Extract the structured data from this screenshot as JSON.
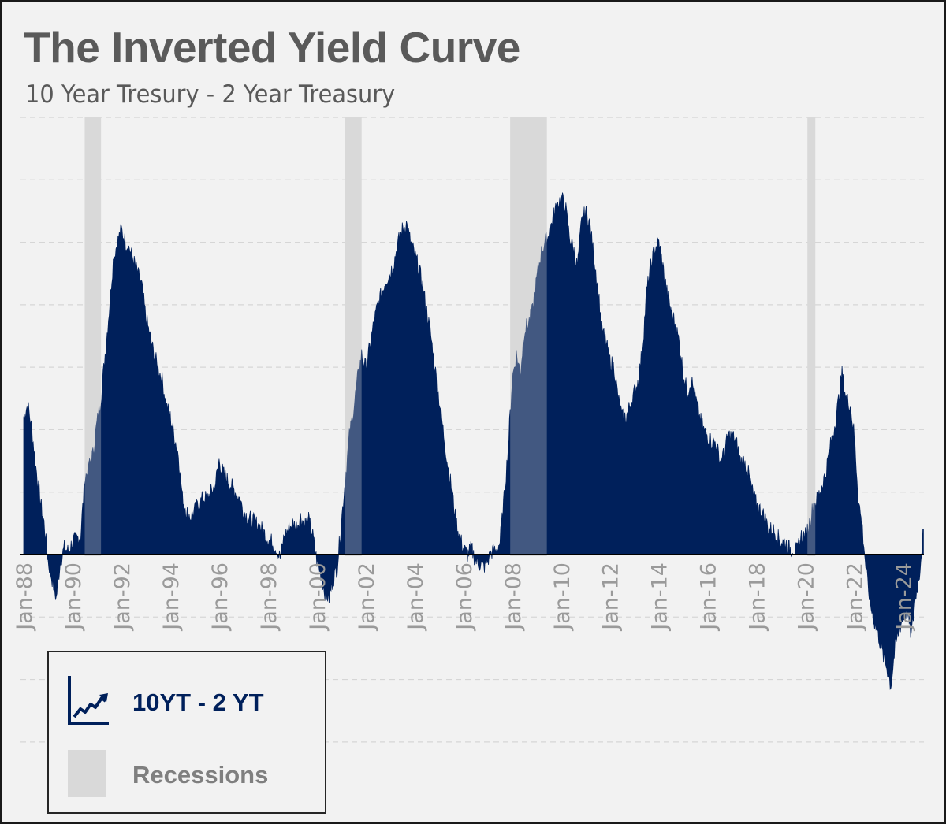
{
  "title": "The Inverted Yield Curve",
  "subtitle": "10 Year Tresury - 2 Year Treasury",
  "colors": {
    "area": "#00205b",
    "recession": "#d9d9d9",
    "grid": "#d6d6d6",
    "zero_line": "#000000",
    "tick_label": "#9a9a9a",
    "background": "#f2f2f2"
  },
  "legend": {
    "series_label": "10YT - 2 YT",
    "series_icon": "line-chart-icon",
    "recession_label": "Recessions"
  },
  "chart_data": {
    "type": "area",
    "x_axis": {
      "range": [
        "1988-01",
        "2024-12"
      ],
      "tick_labels": [
        "Jan-88",
        "Jan-90",
        "Jan-92",
        "Jan-94",
        "Jan-96",
        "Jan-98",
        "Jan-00",
        "Jan-02",
        "Jan-04",
        "Jan-06",
        "Jan-08",
        "Jan-10",
        "Jan-12",
        "Jan-14",
        "Jan-16",
        "Jan-18",
        "Jan-20",
        "Jan-22",
        "Jan-24"
      ],
      "tick_dates": [
        "1988-01",
        "1990-01",
        "1992-01",
        "1994-01",
        "1996-01",
        "1998-01",
        "2000-01",
        "2002-01",
        "2004-01",
        "2006-01",
        "2008-01",
        "2010-01",
        "2012-01",
        "2014-01",
        "2016-01",
        "2018-01",
        "2020-01",
        "2022-01",
        "2024-01"
      ],
      "label_rotation": "vertical"
    },
    "y_axis": {
      "range": [
        -3,
        7
      ],
      "grid_step": 1,
      "tick_labels_shown": false
    },
    "grid": "horizontal-dashed",
    "recessions": [
      {
        "start": "1990-07",
        "end": "1991-03"
      },
      {
        "start": "2001-03",
        "end": "2001-11"
      },
      {
        "start": "2007-12",
        "end": "2009-06"
      },
      {
        "start": "2020-02",
        "end": "2020-04"
      }
    ],
    "series": [
      {
        "name": "10YT - 2 YT",
        "points": [
          [
            "1988-01",
            2.2
          ],
          [
            "1988-03",
            2.4
          ],
          [
            "1988-05",
            2.0
          ],
          [
            "1988-07",
            1.4
          ],
          [
            "1988-09",
            0.9
          ],
          [
            "1988-11",
            0.5
          ],
          [
            "1989-01",
            -0.1
          ],
          [
            "1989-03",
            -0.4
          ],
          [
            "1989-05",
            -0.7
          ],
          [
            "1989-07",
            -0.1
          ],
          [
            "1989-09",
            0.1
          ],
          [
            "1989-11",
            0.05
          ],
          [
            "1990-01",
            0.2
          ],
          [
            "1990-03",
            0.25
          ],
          [
            "1990-05",
            0.3
          ],
          [
            "1990-07",
            1.2
          ],
          [
            "1990-09",
            1.4
          ],
          [
            "1990-11",
            1.6
          ],
          [
            "1991-01",
            2.1
          ],
          [
            "1991-03",
            2.5
          ],
          [
            "1991-05",
            3.2
          ],
          [
            "1991-07",
            3.9
          ],
          [
            "1991-09",
            4.7
          ],
          [
            "1991-11",
            5.0
          ],
          [
            "1992-01",
            5.2
          ],
          [
            "1992-03",
            5.0
          ],
          [
            "1992-05",
            4.9
          ],
          [
            "1992-07",
            4.7
          ],
          [
            "1992-09",
            4.5
          ],
          [
            "1992-11",
            4.3
          ],
          [
            "1993-01",
            3.8
          ],
          [
            "1993-03",
            3.5
          ],
          [
            "1993-05",
            3.2
          ],
          [
            "1993-07",
            3.0
          ],
          [
            "1993-09",
            2.8
          ],
          [
            "1993-11",
            2.4
          ],
          [
            "1994-01",
            2.2
          ],
          [
            "1994-03",
            1.9
          ],
          [
            "1994-05",
            1.6
          ],
          [
            "1994-07",
            0.9
          ],
          [
            "1994-09",
            0.7
          ],
          [
            "1994-11",
            0.6
          ],
          [
            "1995-01",
            0.7
          ],
          [
            "1995-03",
            0.8
          ],
          [
            "1995-05",
            0.9
          ],
          [
            "1995-07",
            0.9
          ],
          [
            "1995-09",
            1.0
          ],
          [
            "1995-11",
            1.1
          ],
          [
            "1996-01",
            1.5
          ],
          [
            "1996-03",
            1.3
          ],
          [
            "1996-05",
            1.2
          ],
          [
            "1996-07",
            1.1
          ],
          [
            "1996-09",
            1.0
          ],
          [
            "1996-11",
            0.9
          ],
          [
            "1997-01",
            0.7
          ],
          [
            "1997-03",
            0.6
          ],
          [
            "1997-05",
            0.55
          ],
          [
            "1997-07",
            0.5
          ],
          [
            "1997-09",
            0.45
          ],
          [
            "1997-11",
            0.35
          ],
          [
            "1998-01",
            0.25
          ],
          [
            "1998-03",
            0.2
          ],
          [
            "1998-05",
            0.1
          ],
          [
            "1998-07",
            -0.05
          ],
          [
            "1998-09",
            0.3
          ],
          [
            "1998-11",
            0.4
          ],
          [
            "1999-01",
            0.5
          ],
          [
            "1999-03",
            0.45
          ],
          [
            "1999-05",
            0.6
          ],
          [
            "1999-07",
            0.5
          ],
          [
            "1999-09",
            0.55
          ],
          [
            "1999-11",
            0.3
          ],
          [
            "2000-01",
            -0.1
          ],
          [
            "2000-03",
            -0.3
          ],
          [
            "2000-05",
            -0.6
          ],
          [
            "2000-07",
            -0.7
          ],
          [
            "2000-09",
            -0.4
          ],
          [
            "2000-11",
            -0.2
          ],
          [
            "2001-01",
            0.5
          ],
          [
            "2001-03",
            1.2
          ],
          [
            "2001-05",
            1.9
          ],
          [
            "2001-07",
            2.3
          ],
          [
            "2001-09",
            2.8
          ],
          [
            "2001-11",
            3.2
          ],
          [
            "2002-01",
            3.0
          ],
          [
            "2002-03",
            3.3
          ],
          [
            "2002-05",
            3.7
          ],
          [
            "2002-07",
            4.0
          ],
          [
            "2002-09",
            4.2
          ],
          [
            "2002-11",
            4.4
          ],
          [
            "2003-01",
            4.5
          ],
          [
            "2003-03",
            4.7
          ],
          [
            "2003-05",
            5.0
          ],
          [
            "2003-07",
            5.2
          ],
          [
            "2003-09",
            5.3
          ],
          [
            "2003-11",
            5.0
          ],
          [
            "2004-01",
            4.8
          ],
          [
            "2004-03",
            4.6
          ],
          [
            "2004-05",
            4.3
          ],
          [
            "2004-07",
            3.9
          ],
          [
            "2004-09",
            3.5
          ],
          [
            "2004-11",
            3.0
          ],
          [
            "2005-01",
            2.5
          ],
          [
            "2005-03",
            2.0
          ],
          [
            "2005-05",
            1.5
          ],
          [
            "2005-07",
            1.1
          ],
          [
            "2005-09",
            0.6
          ],
          [
            "2005-11",
            0.3
          ],
          [
            "2006-01",
            0.1
          ],
          [
            "2006-03",
            0.0
          ],
          [
            "2006-05",
            0.1
          ],
          [
            "2006-07",
            -0.1
          ],
          [
            "2006-09",
            -0.15
          ],
          [
            "2006-11",
            -0.2
          ],
          [
            "2007-01",
            -0.1
          ],
          [
            "2007-03",
            0.05
          ],
          [
            "2007-05",
            0.05
          ],
          [
            "2007-07",
            0.2
          ],
          [
            "2007-09",
            0.9
          ],
          [
            "2007-11",
            1.7
          ],
          [
            "2008-01",
            2.8
          ],
          [
            "2008-03",
            3.2
          ],
          [
            "2008-05",
            2.9
          ],
          [
            "2008-07",
            3.6
          ],
          [
            "2008-09",
            3.7
          ],
          [
            "2008-11",
            3.9
          ],
          [
            "2009-01",
            4.4
          ],
          [
            "2009-03",
            4.8
          ],
          [
            "2009-05",
            5.0
          ],
          [
            "2009-07",
            5.1
          ],
          [
            "2009-09",
            5.4
          ],
          [
            "2009-11",
            5.6
          ],
          [
            "2010-01",
            5.7
          ],
          [
            "2010-03",
            5.6
          ],
          [
            "2010-05",
            5.1
          ],
          [
            "2010-07",
            4.9
          ],
          [
            "2010-09",
            4.6
          ],
          [
            "2010-11",
            5.3
          ],
          [
            "2011-01",
            5.5
          ],
          [
            "2011-03",
            5.3
          ],
          [
            "2011-05",
            4.8
          ],
          [
            "2011-07",
            4.3
          ],
          [
            "2011-09",
            3.6
          ],
          [
            "2011-11",
            3.4
          ],
          [
            "2012-01",
            3.1
          ],
          [
            "2012-03",
            3.0
          ],
          [
            "2012-05",
            2.5
          ],
          [
            "2012-07",
            2.2
          ],
          [
            "2012-09",
            2.2
          ],
          [
            "2012-11",
            2.4
          ],
          [
            "2013-01",
            2.6
          ],
          [
            "2013-03",
            2.8
          ],
          [
            "2013-05",
            3.3
          ],
          [
            "2013-07",
            4.2
          ],
          [
            "2013-09",
            4.6
          ],
          [
            "2013-11",
            4.9
          ],
          [
            "2014-01",
            5.0
          ],
          [
            "2014-03",
            4.6
          ],
          [
            "2014-05",
            4.2
          ],
          [
            "2014-07",
            3.9
          ],
          [
            "2014-09",
            3.7
          ],
          [
            "2014-11",
            3.4
          ],
          [
            "2015-01",
            2.9
          ],
          [
            "2015-03",
            2.6
          ],
          [
            "2015-05",
            2.8
          ],
          [
            "2015-07",
            2.5
          ],
          [
            "2015-09",
            2.2
          ],
          [
            "2015-11",
            2.0
          ],
          [
            "2016-01",
            1.9
          ],
          [
            "2016-03",
            1.8
          ],
          [
            "2016-05",
            1.8
          ],
          [
            "2016-07",
            1.5
          ],
          [
            "2016-09",
            1.6
          ],
          [
            "2016-11",
            1.9
          ],
          [
            "2017-01",
            1.9
          ],
          [
            "2017-03",
            1.8
          ],
          [
            "2017-05",
            1.5
          ],
          [
            "2017-07",
            1.5
          ],
          [
            "2017-09",
            1.3
          ],
          [
            "2017-11",
            1.0
          ],
          [
            "2018-01",
            0.8
          ],
          [
            "2018-03",
            0.7
          ],
          [
            "2018-05",
            0.6
          ],
          [
            "2018-07",
            0.4
          ],
          [
            "2018-09",
            0.4
          ],
          [
            "2018-11",
            0.3
          ],
          [
            "2019-01",
            0.2
          ],
          [
            "2019-03",
            0.2
          ],
          [
            "2019-05",
            0.1
          ],
          [
            "2019-07",
            0.1
          ],
          [
            "2019-09",
            0.05
          ],
          [
            "2019-11",
            0.3
          ],
          [
            "2020-01",
            0.3
          ],
          [
            "2020-03",
            0.5
          ],
          [
            "2020-05",
            0.8
          ],
          [
            "2020-07",
            0.9
          ],
          [
            "2020-09",
            1.1
          ],
          [
            "2020-11",
            1.3
          ],
          [
            "2021-01",
            1.7
          ],
          [
            "2021-03",
            2.0
          ],
          [
            "2021-05",
            2.4
          ],
          [
            "2021-07",
            2.9
          ],
          [
            "2021-09",
            2.5
          ],
          [
            "2021-11",
            2.4
          ],
          [
            "2022-01",
            1.9
          ],
          [
            "2022-03",
            0.9
          ],
          [
            "2022-05",
            0.4
          ],
          [
            "2022-07",
            -0.3
          ],
          [
            "2022-09",
            -0.8
          ],
          [
            "2022-11",
            -1.1
          ],
          [
            "2023-01",
            -1.3
          ],
          [
            "2023-03",
            -1.6
          ],
          [
            "2023-05",
            -1.8
          ],
          [
            "2023-07",
            -2.1
          ],
          [
            "2023-09",
            -1.5
          ],
          [
            "2023-11",
            -1.2
          ],
          [
            "2024-01",
            -1.0
          ],
          [
            "2024-03",
            -0.9
          ],
          [
            "2024-05",
            -1.3
          ],
          [
            "2024-07",
            -0.7
          ],
          [
            "2024-09",
            -0.3
          ],
          [
            "2024-11",
            0.4
          ]
        ]
      }
    ]
  }
}
